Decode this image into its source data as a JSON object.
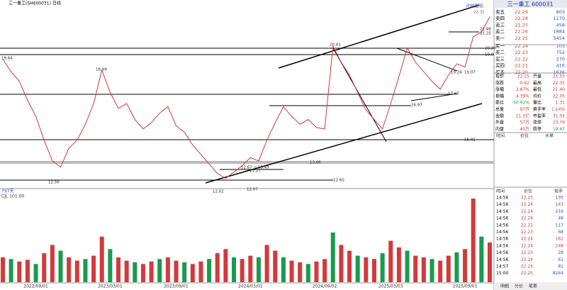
{
  "header": {
    "title": "三一重工(SH600031) 日线"
  },
  "chart_data": [
    {
      "type": "line",
      "color": "#d23a3a",
      "top_label": "向前复权",
      "categories": [
        null,
        null,
        null,
        null,
        "2022/09/01",
        null,
        null,
        null,
        null,
        null,
        null,
        null,
        null,
        "2023/03/01",
        null,
        null,
        null,
        null,
        null,
        null,
        null,
        "2023/09/01",
        null,
        null,
        null,
        null,
        null,
        null,
        null,
        null,
        "2024/03/01",
        null,
        null,
        null,
        null,
        null,
        null,
        null,
        null,
        "2024/09/02",
        null,
        null,
        null,
        null,
        null,
        null,
        null,
        "2025/03/03",
        null,
        null,
        null,
        null,
        null,
        null,
        null,
        null,
        "2025/09/01",
        null,
        null,
        null
      ],
      "values": [
        19.6,
        18.8,
        18.2,
        17.0,
        16.0,
        14.5,
        13.2,
        12.8,
        14.0,
        14.5,
        15.5,
        16.8,
        18.9,
        17.5,
        16.5,
        16.8,
        15.8,
        15.2,
        15.6,
        16.2,
        16.6,
        15.4,
        15.0,
        14.2,
        13.6,
        13.0,
        12.4,
        12.1,
        12.5,
        12.9,
        13.4,
        13.2,
        14.5,
        15.6,
        16.6,
        16.0,
        15.5,
        15.8,
        15.3,
        15.2,
        20.4,
        19.4,
        18.6,
        17.5,
        16.4,
        15.8,
        15.2,
        16.8,
        18.5,
        20.3,
        19.4,
        18.8,
        18.2,
        17.7,
        18.6,
        19.3,
        19.1,
        21.0,
        21.3,
        22.25
      ],
      "ylim": [
        11.5,
        23
      ],
      "annotations": [
        "19.64",
        "18.99",
        "20.41",
        "12.56",
        "12.02",
        "12.07",
        "12.67 ~ 13.49",
        "13.27",
        "13.66",
        "12.60",
        "15.01",
        "16.97",
        "17.65",
        "19.24",
        "19.07",
        "21.48",
        "21.25",
        "22.35",
        "20.39",
        "19.9"
      ]
    },
    {
      "type": "bar",
      "title": "CJL  101.00",
      "days": "797天",
      "color": "#d23a3a",
      "ylim": [
        0,
        101
      ],
      "values": [
        30,
        28,
        25,
        27,
        22,
        35,
        45,
        38,
        30,
        26,
        28,
        32,
        55,
        40,
        30,
        26,
        24,
        22,
        25,
        28,
        30,
        26,
        24,
        22,
        25,
        28,
        35,
        40,
        30,
        28,
        32,
        30,
        45,
        38,
        30,
        26,
        24,
        22,
        25,
        28,
        60,
        45,
        38,
        32,
        30,
        28,
        35,
        50,
        42,
        38,
        32,
        30,
        28,
        26,
        32,
        36,
        40,
        101,
        55,
        48
      ]
    }
  ],
  "quote_panel": {
    "title": "三一重工  600031",
    "order_book": [
      [
        "卖五",
        "22.29",
        "803"
      ],
      [
        "卖四",
        "22.28",
        "1170"
      ],
      [
        "卖三",
        "22.27",
        "458"
      ],
      [
        "卖二",
        "22.26",
        "1884"
      ],
      [
        "卖一",
        "22.25",
        "5454"
      ],
      [
        "买一",
        "22.24",
        "103"
      ],
      [
        "买二",
        "22.23",
        "752"
      ],
      [
        "买三",
        "22.22",
        "270"
      ],
      [
        "买四",
        "22.21",
        "416"
      ],
      [
        "买五",
        "22.20",
        "1636"
      ]
    ],
    "stats": [
      [
        "现价",
        "22.25",
        "开盘",
        "21.55"
      ],
      [
        "涨跌",
        "0.62",
        "最高",
        "22.35"
      ],
      [
        "涨幅",
        "2.87%",
        "最低",
        "21.40"
      ],
      [
        "振幅",
        "4.39%",
        "均价",
        "22.05"
      ],
      [
        "委比",
        "-50.92%",
        "量比",
        "1.31"
      ],
      [
        "总量",
        "97万",
        "换手率",
        "1.14%"
      ],
      [
        "金额",
        "21.3亿",
        "市盈率",
        "31.55"
      ],
      [
        "外盘",
        "57万",
        "涨停",
        "23.79"
      ],
      [
        "内盘",
        "40万",
        "跌停",
        "19.47"
      ]
    ],
    "tabs": [
      "时间",
      "价位",
      "大单"
    ]
  },
  "trades": {
    "header": [
      "时间",
      "价位",
      "现手"
    ],
    "rows": [
      [
        "14:56",
        "22.23",
        "135"
      ],
      [
        "14:56",
        "22.24",
        "143"
      ],
      [
        "14:56",
        "22.24",
        "216"
      ],
      [
        "14:56",
        "22.24",
        "48"
      ],
      [
        "14:56",
        "22.22",
        "117"
      ],
      [
        "14:56",
        "22.23",
        "68"
      ],
      [
        "14:56",
        "22.24",
        "162"
      ],
      [
        "14:56",
        "22.24",
        "248"
      ],
      [
        "14:56",
        "22.23",
        "28"
      ],
      [
        "14:56",
        "22.24",
        "61"
      ],
      [
        "14:57",
        "22.24",
        "81"
      ],
      [
        "15:00",
        "22.25",
        "8244"
      ]
    ],
    "tabs": [
      "明细",
      "分价",
      "笔筹"
    ]
  }
}
